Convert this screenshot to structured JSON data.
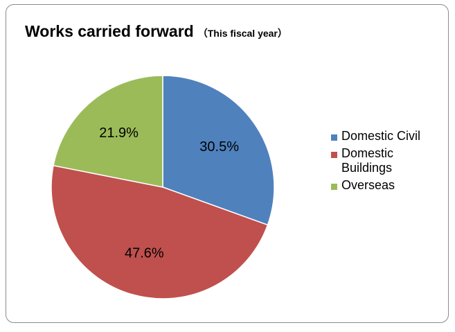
{
  "chart_data": {
    "type": "pie",
    "title": "Works carried forward",
    "subtitle": "（This fiscal year）",
    "categories": [
      "Domestic Civil",
      "Domestic Buildings",
      "Overseas"
    ],
    "values": [
      30.5,
      47.6,
      21.9
    ],
    "labels": [
      "30.5%",
      "47.6%",
      "21.9%"
    ],
    "colors": [
      "#4f81bd",
      "#c0504d",
      "#9bbb59"
    ],
    "legend_position": "right",
    "start_angle": "12 o'clock, clockwise"
  }
}
